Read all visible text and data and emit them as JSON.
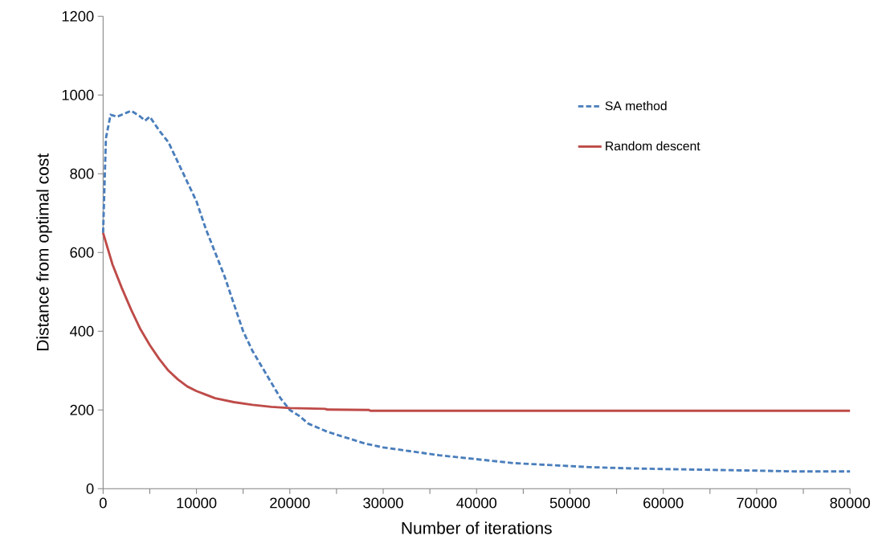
{
  "chart_data": {
    "type": "line",
    "xlabel": "Number of iterations",
    "ylabel": "Distance from optimal cost",
    "xlim": [
      0,
      80000
    ],
    "ylim": [
      0,
      1200
    ],
    "xticks": [
      0,
      {
        "value": 5000,
        "label": null
      },
      10000,
      {
        "value": 15000,
        "label": null
      },
      20000,
      {
        "value": 25000,
        "label": null
      },
      30000,
      {
        "value": 35000,
        "label": null
      },
      40000,
      {
        "value": 45000,
        "label": null
      },
      50000,
      {
        "value": 55000,
        "label": null
      },
      60000,
      {
        "value": 65000,
        "label": null
      },
      70000,
      {
        "value": 75000,
        "label": null
      },
      80000
    ],
    "yticks": [
      0,
      200,
      400,
      600,
      800,
      1000,
      1200
    ],
    "grid": false,
    "legend": "top right",
    "marker": "none",
    "series": [
      {
        "name": "SA method",
        "color": "#4a7ebb",
        "line_style": "dashed",
        "x": [
          0,
          300,
          800,
          1500,
          2500,
          3000,
          4000,
          4500,
          5000,
          6000,
          7000,
          8000,
          9000,
          10000,
          11000,
          12000,
          13000,
          14000,
          15000,
          16000,
          17000,
          18000,
          19000,
          20000,
          21000,
          22000,
          24000,
          26000,
          28000,
          30000,
          33000,
          36000,
          40000,
          44000,
          48000,
          52000,
          56000,
          60000,
          65000,
          70000,
          74000,
          80000
        ],
        "values": [
          650,
          890,
          950,
          945,
          955,
          960,
          945,
          935,
          945,
          910,
          880,
          830,
          780,
          730,
          660,
          600,
          540,
          470,
          400,
          350,
          310,
          270,
          230,
          200,
          185,
          165,
          145,
          130,
          115,
          105,
          95,
          85,
          75,
          65,
          60,
          55,
          52,
          50,
          48,
          46,
          44,
          44
        ]
      },
      {
        "name": "Random descent",
        "color": "#be4b48",
        "line_style": "solid",
        "x": [
          0,
          1000,
          2000,
          3000,
          4000,
          5000,
          6000,
          7000,
          8000,
          9000,
          10000,
          12000,
          14000,
          16000,
          18000,
          20000,
          23800,
          24000,
          28500,
          28600,
          80000
        ],
        "values": [
          650,
          570,
          510,
          455,
          405,
          365,
          330,
          300,
          278,
          260,
          248,
          230,
          220,
          213,
          208,
          205,
          203,
          201,
          200,
          198,
          198
        ]
      }
    ]
  }
}
